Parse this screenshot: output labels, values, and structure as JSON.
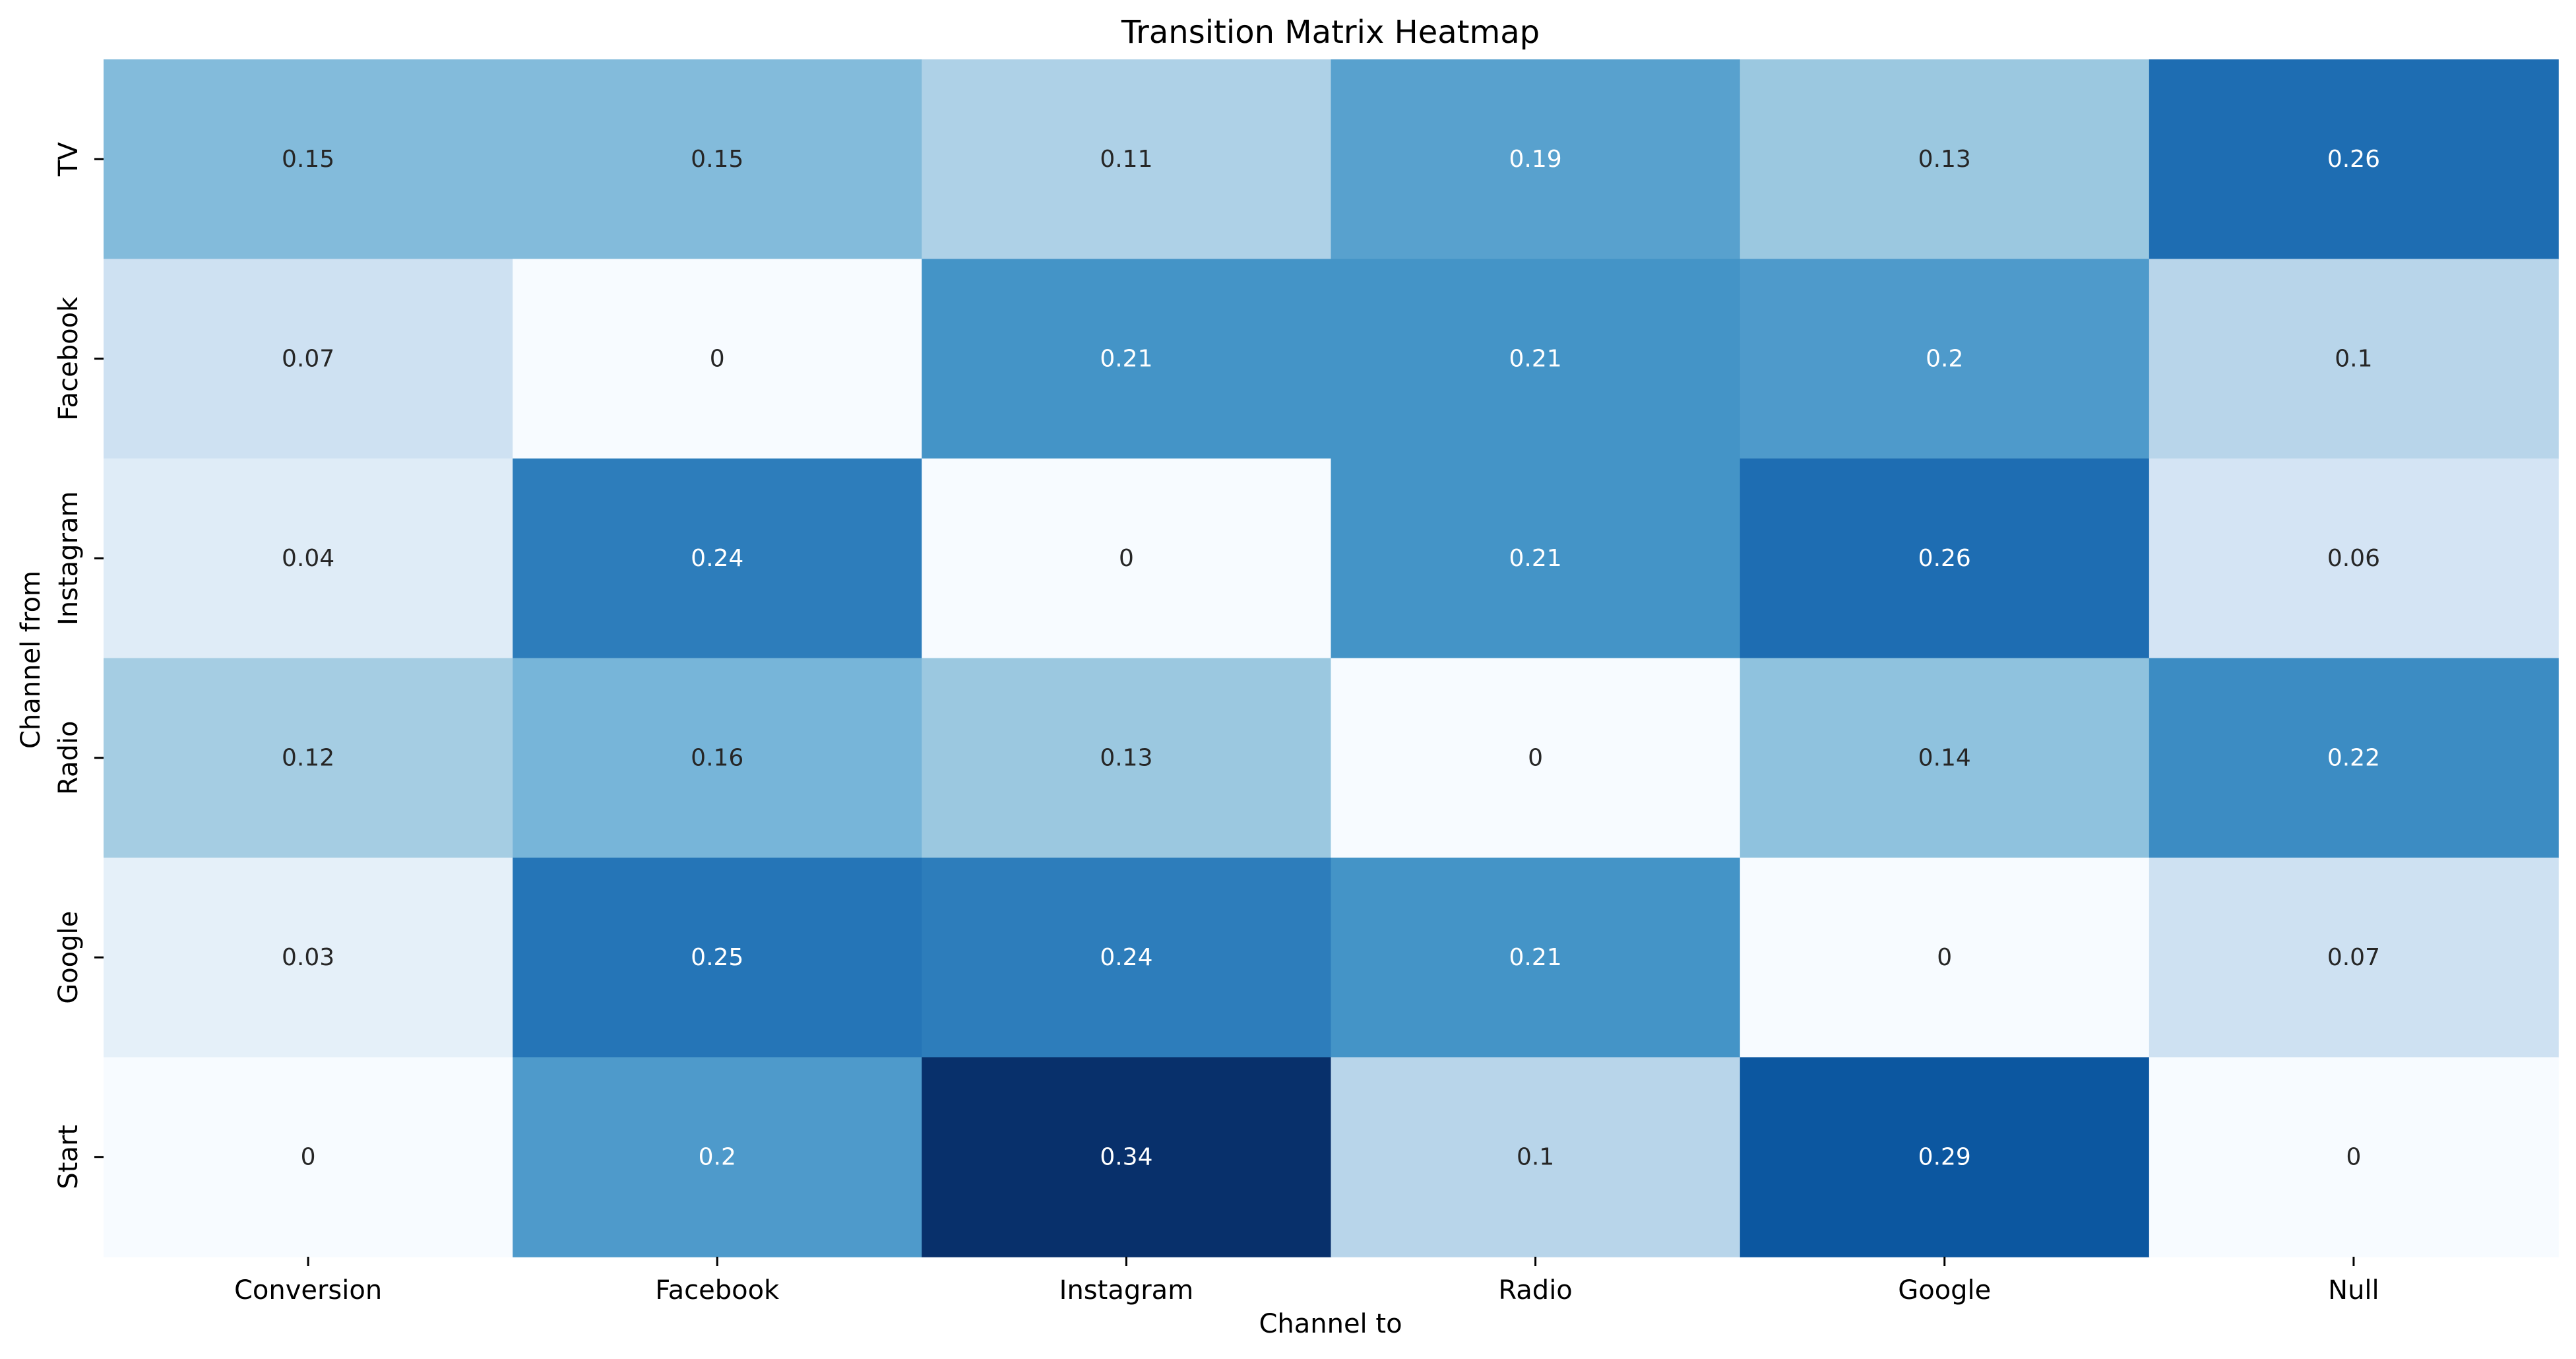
{
  "chart_data": {
    "type": "heatmap",
    "title": "Transition Matrix Heatmap",
    "xlabel": "Channel to",
    "ylabel": "Channel from",
    "x_categories": [
      "Conversion",
      "Facebook",
      "Instagram",
      "Radio",
      "Google",
      "Null"
    ],
    "y_categories": [
      "TV",
      "Facebook",
      "Instagram",
      "Radio",
      "Google",
      "Start"
    ],
    "values": [
      [
        0.15,
        0.15,
        0.11,
        0.19,
        0.13,
        0.26
      ],
      [
        0.07,
        0,
        0.21,
        0.21,
        0.2,
        0.1
      ],
      [
        0.04,
        0.24,
        0,
        0.21,
        0.26,
        0.06
      ],
      [
        0.12,
        0.16,
        0.13,
        0,
        0.14,
        0.22
      ],
      [
        0.03,
        0.25,
        0.24,
        0.21,
        0,
        0.07
      ],
      [
        0,
        0.2,
        0.34,
        0.1,
        0.29,
        0
      ]
    ],
    "value_range": [
      0,
      0.34
    ],
    "colormap": "Blues",
    "colorbar": false,
    "grid": false,
    "annotated": true
  }
}
